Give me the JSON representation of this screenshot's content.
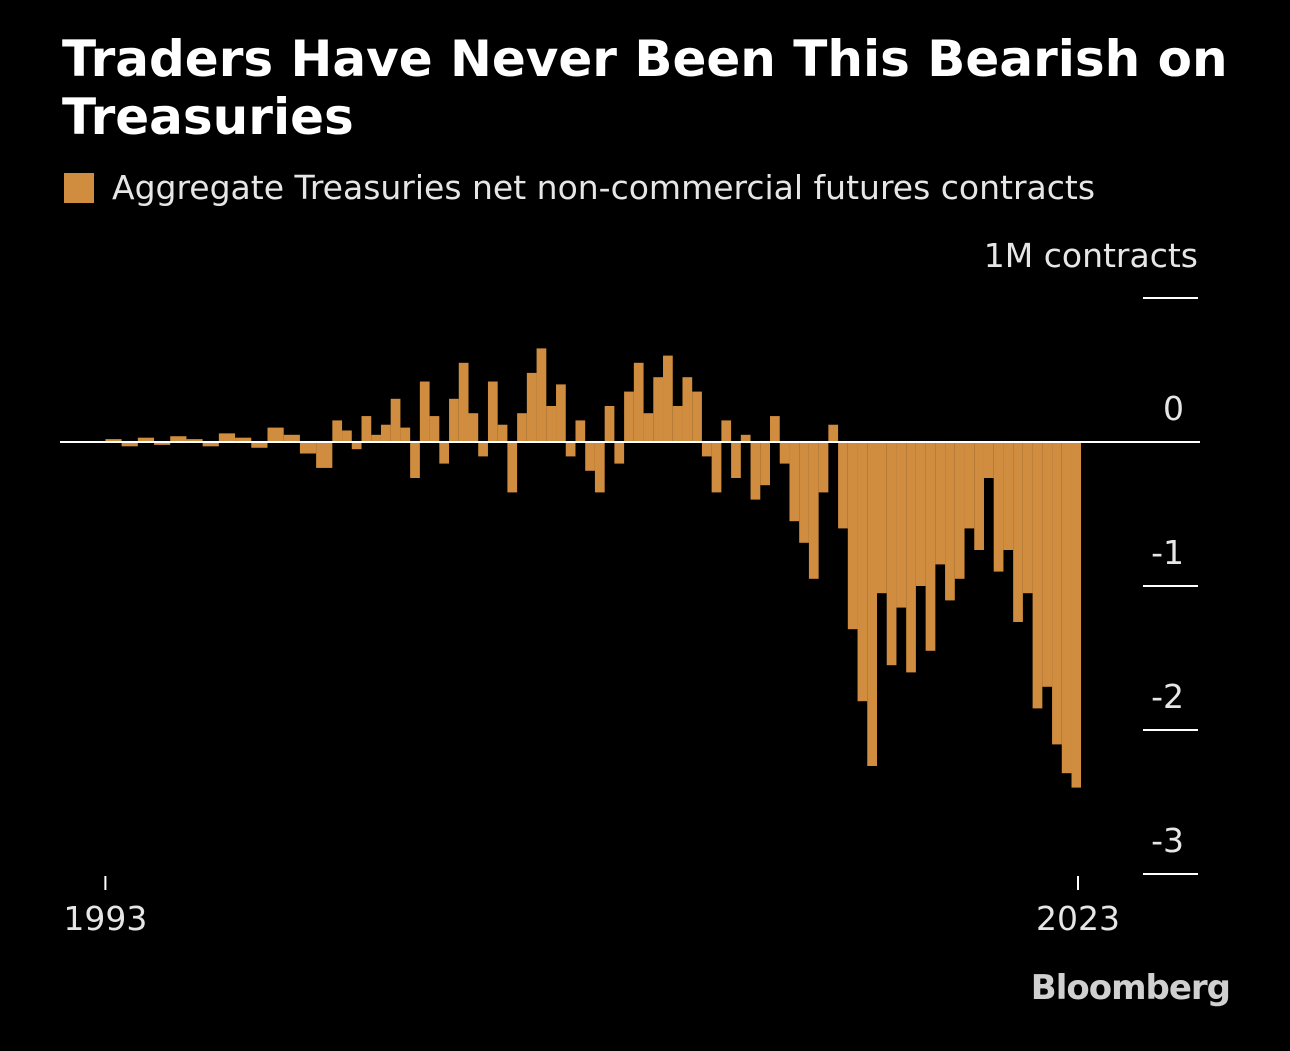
{
  "chart_data": {
    "type": "area",
    "title": "Traders Have Never Been This Bearish on Treasuries",
    "legend": [
      {
        "name": "Aggregate Treasuries net non-commercial futures contracts",
        "color": "#D08D3F"
      }
    ],
    "unit_label": "1M contracts",
    "ylabel": "1M contracts",
    "xlabel": "",
    "ylim": [
      -3,
      1
    ],
    "yticks": [
      1,
      0,
      -1,
      -2,
      -3
    ],
    "ytick_labels": [
      "",
      "0",
      "-1",
      "-2",
      "-3"
    ],
    "xlim": [
      1991.6,
      2023.0
    ],
    "xticks": [
      1993,
      2023
    ],
    "xtick_labels": [
      "1993",
      "2023"
    ],
    "series": [
      {
        "name": "Aggregate Treasuries net non-commercial futures contracts",
        "color": "#D08D3F",
        "x": [
          1993.0,
          1993.5,
          1994.0,
          1994.5,
          1995.0,
          1995.5,
          1996.0,
          1996.5,
          1997.0,
          1997.5,
          1998.0,
          1998.5,
          1999.0,
          1999.5,
          2000.0,
          2000.3,
          2000.6,
          2000.9,
          2001.2,
          2001.5,
          2001.8,
          2002.1,
          2002.4,
          2002.7,
          2003.0,
          2003.3,
          2003.6,
          2003.9,
          2004.2,
          2004.5,
          2004.8,
          2005.1,
          2005.4,
          2005.7,
          2006.0,
          2006.3,
          2006.6,
          2006.9,
          2007.2,
          2007.5,
          2007.8,
          2008.1,
          2008.4,
          2008.7,
          2009.0,
          2009.3,
          2009.6,
          2009.9,
          2010.2,
          2010.5,
          2010.8,
          2011.1,
          2011.4,
          2011.7,
          2012.0,
          2012.3,
          2012.6,
          2012.9,
          2013.2,
          2013.5,
          2013.8,
          2014.1,
          2014.4,
          2014.7,
          2015.0,
          2015.3,
          2015.6,
          2015.9,
          2016.2,
          2016.5,
          2016.8,
          2017.1,
          2017.4,
          2017.7,
          2018.0,
          2018.3,
          2018.6,
          2018.9,
          2019.2,
          2019.5,
          2019.8,
          2020.1,
          2020.4,
          2020.7,
          2021.0,
          2021.3,
          2021.6,
          2021.9,
          2022.2,
          2022.5,
          2022.8,
          2023.0
        ],
        "values": [
          0.02,
          -0.03,
          0.03,
          -0.02,
          0.04,
          0.02,
          -0.03,
          0.06,
          0.03,
          -0.04,
          0.1,
          0.05,
          -0.08,
          -0.18,
          0.15,
          0.08,
          -0.05,
          0.18,
          0.05,
          0.12,
          0.3,
          0.1,
          -0.25,
          0.42,
          0.18,
          -0.15,
          0.3,
          0.55,
          0.2,
          -0.1,
          0.42,
          0.12,
          -0.35,
          0.2,
          0.48,
          0.65,
          0.25,
          0.4,
          -0.1,
          0.15,
          -0.2,
          -0.35,
          0.25,
          -0.15,
          0.35,
          0.55,
          0.2,
          0.45,
          0.6,
          0.25,
          0.45,
          0.35,
          -0.1,
          -0.35,
          0.15,
          -0.25,
          0.05,
          -0.4,
          -0.3,
          0.18,
          -0.15,
          -0.55,
          -0.7,
          -0.95,
          -0.35,
          0.12,
          -0.6,
          -1.3,
          -1.8,
          -2.25,
          -1.05,
          -1.55,
          -1.15,
          -1.6,
          -1.0,
          -1.45,
          -0.85,
          -1.1,
          -0.95,
          -0.6,
          -0.75,
          -0.25,
          -0.9,
          -0.75,
          -1.25,
          -1.05,
          -1.85,
          -1.7,
          -2.1,
          -2.3,
          -2.4,
          -2.4
        ]
      }
    ]
  },
  "source_label": "Bloomberg"
}
